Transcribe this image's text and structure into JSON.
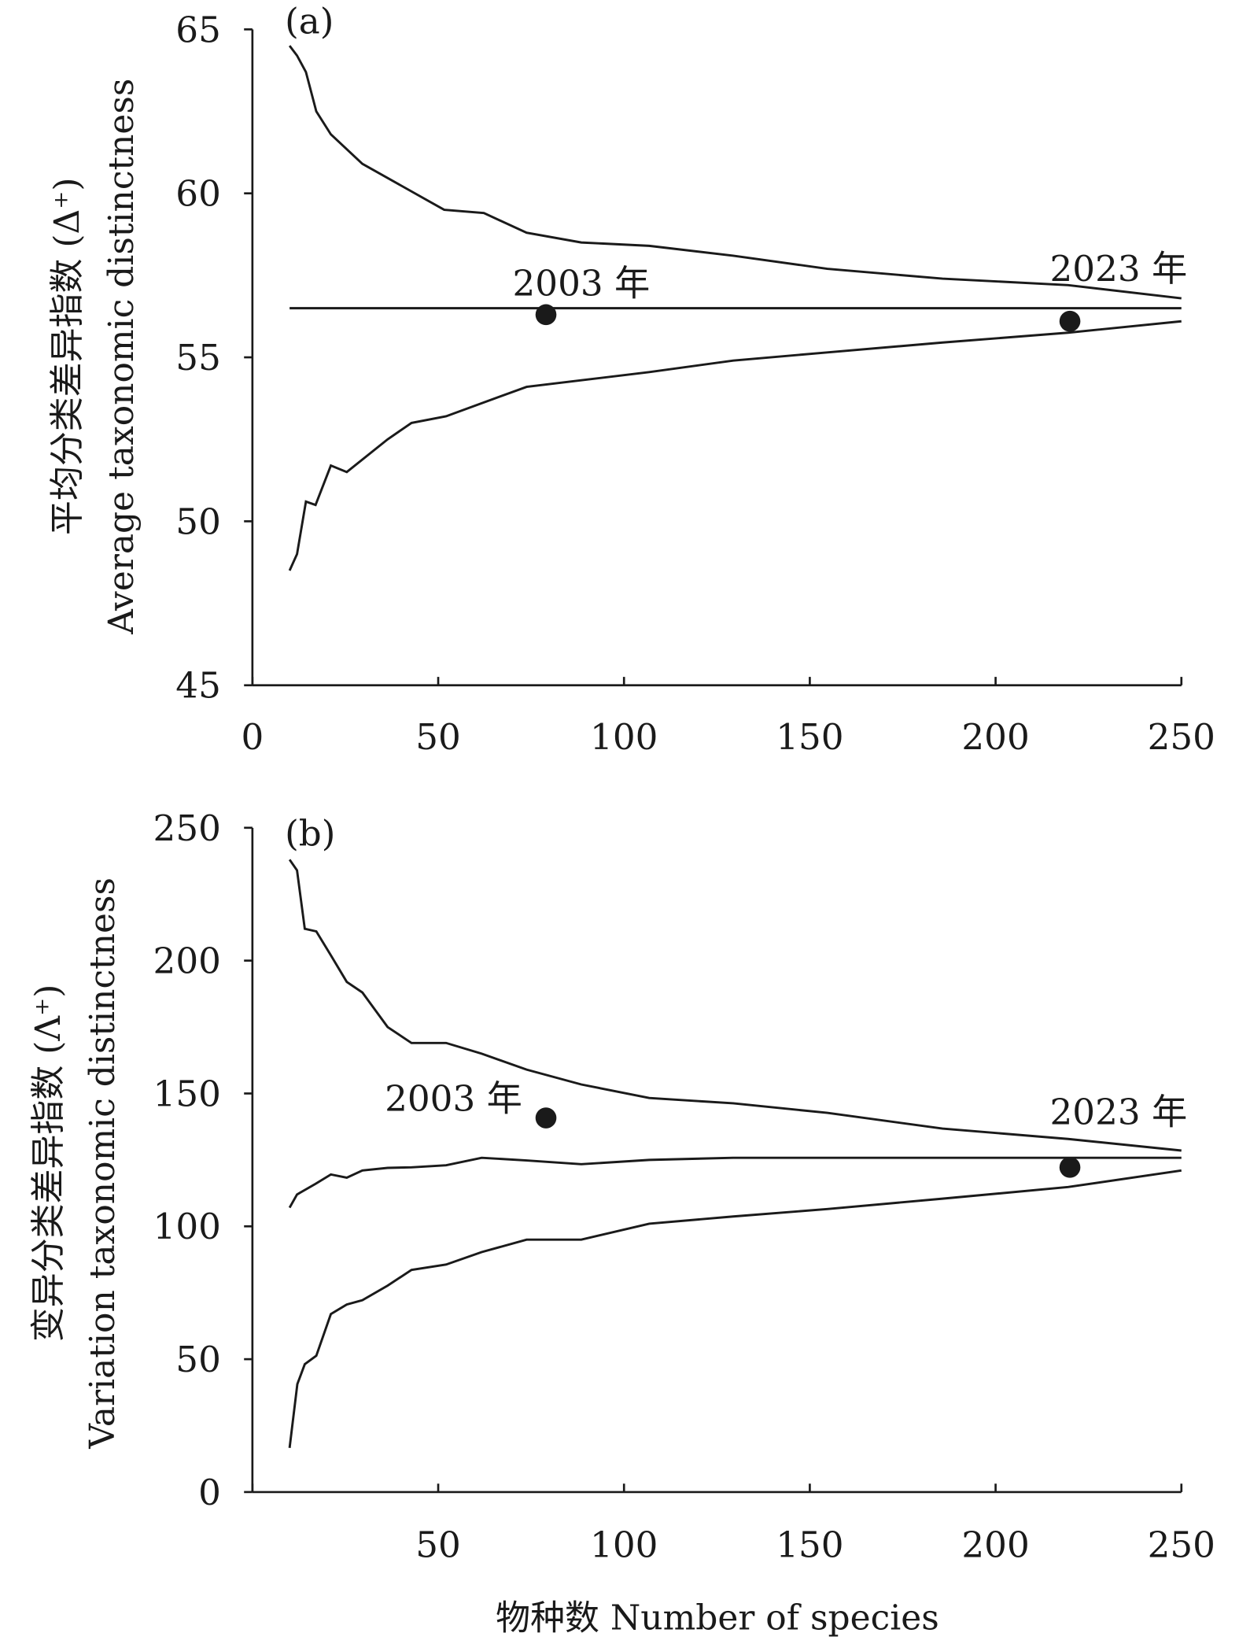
{
  "chart_data": [
    {
      "type": "line",
      "panel_label": "(a)",
      "ylabel_cn": "平均分类差异指数 (Δ⁺)",
      "ylabel_en": "Average taxonomic distinctness",
      "xlim": [
        0,
        250
      ],
      "ylim": [
        45,
        65
      ],
      "xticks": [
        0,
        50,
        100,
        150,
        200,
        250
      ],
      "yticks": [
        45,
        50,
        55,
        60,
        65
      ],
      "series": [
        {
          "name": "upper",
          "x": [
            10,
            12,
            14.4,
            17.2,
            21.1,
            29.6,
            51.6,
            62.3,
            73.8,
            88.5,
            106.8,
            129.4,
            154.7,
            185.7,
            219.5,
            250
          ],
          "y": [
            64.5,
            64.2,
            63.7,
            62.5,
            61.8,
            60.9,
            59.5,
            59.4,
            58.8,
            58.5,
            58.4,
            58.1,
            57.7,
            57.4,
            57.2,
            56.8
          ]
        },
        {
          "name": "mean",
          "x": [
            10,
            250
          ],
          "y": [
            56.5,
            56.5
          ]
        },
        {
          "name": "lower",
          "x": [
            10,
            12,
            14.4,
            17,
            21.1,
            25.4,
            36.4,
            42.8,
            52.1,
            61.7,
            73.8,
            88.5,
            106.8,
            129.4,
            154.7,
            185.7,
            219.5,
            250
          ],
          "y": [
            48.5,
            49.0,
            50.6,
            50.5,
            51.7,
            51.5,
            52.5,
            53.0,
            53.2,
            53.6,
            54.1,
            54.3,
            54.55,
            54.9,
            55.15,
            55.45,
            55.75,
            56.1
          ]
        }
      ],
      "points": [
        {
          "label": "2003 年",
          "x": 79,
          "y": 56.3
        },
        {
          "label": "2023 年",
          "x": 220,
          "y": 56.1
        }
      ]
    },
    {
      "type": "line",
      "panel_label": "(b)",
      "ylabel_cn": "变异分类差异指数 (Λ⁺)",
      "ylabel_en": "Variation taxonomic distinctness",
      "xlabel": "物种数 Number of species",
      "xlim": [
        0,
        250
      ],
      "ylim": [
        0,
        250
      ],
      "xticks": [
        50,
        100,
        150,
        200,
        250
      ],
      "yticks": [
        0,
        50,
        100,
        150,
        200,
        250
      ],
      "series": [
        {
          "name": "upper",
          "x": [
            10,
            12,
            14.1,
            17.2,
            21.1,
            25.4,
            29.6,
            36.4,
            42.8,
            52.1,
            61.7,
            73.8,
            88.5,
            106.8,
            129.4,
            154.7,
            185.7,
            219.5,
            250
          ],
          "y": [
            238,
            234,
            212,
            211,
            202,
            192,
            188,
            175,
            169,
            169,
            165,
            159,
            153.4,
            148.3,
            146.3,
            142.7,
            136.8,
            132.9,
            128.5
          ]
        },
        {
          "name": "mean",
          "x": [
            10,
            12,
            17,
            21.1,
            25.4,
            29.6,
            36.4,
            42.8,
            52.1,
            61.7,
            73.8,
            88.5,
            106.8,
            129.4,
            250
          ],
          "y": [
            107,
            112,
            116,
            119.5,
            118.3,
            121,
            122,
            122.2,
            123,
            125.8,
            124.8,
            123.4,
            125,
            125.8,
            125.8
          ]
        },
        {
          "name": "lower",
          "x": [
            10,
            12.1,
            14.1,
            17.2,
            21.1,
            25.4,
            29.6,
            36.4,
            42.8,
            52.1,
            61.7,
            73.8,
            88.5,
            106.8,
            129.4,
            154.7,
            185.7,
            219.5,
            250
          ],
          "y": [
            16.6,
            40.6,
            48.1,
            51.3,
            67,
            70.6,
            72.2,
            77.7,
            83.6,
            85.6,
            90.3,
            95,
            95,
            101,
            103.7,
            106.5,
            110.4,
            114.8,
            121
          ]
        }
      ],
      "points": [
        {
          "label": "2003 年",
          "x": 79,
          "y": 140.8
        },
        {
          "label": "2023 年",
          "x": 220,
          "y": 122.2
        }
      ]
    }
  ]
}
